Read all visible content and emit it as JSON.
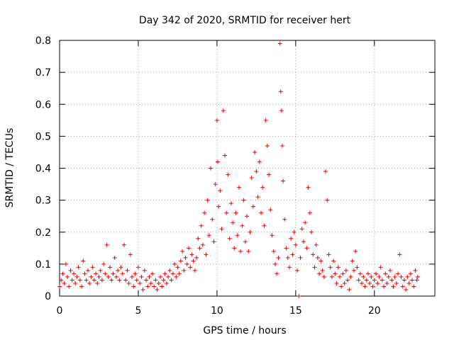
{
  "chart_data": {
    "type": "scatter",
    "title": "Day 342 of 2020, SRMTID for receiver hert",
    "xlabel": "GPS time / hours",
    "ylabel": "SRMTID / TECUs",
    "xlim": [
      0,
      23.84
    ],
    "ylim": [
      0,
      0.8
    ],
    "xticks": [
      0,
      5,
      10,
      15,
      20
    ],
    "yticks": [
      0,
      0.1,
      0.2,
      0.3,
      0.4,
      0.5,
      0.6,
      0.7,
      0.8
    ],
    "xtick_labels": [
      "0",
      "5",
      "10",
      "15",
      "20"
    ],
    "ytick_labels": [
      "0",
      "0.1",
      "0.2",
      "0.3",
      "0.4",
      "0.5",
      "0.6",
      "0.7",
      "0.8"
    ],
    "grid": true,
    "marker": "+",
    "color": "#ee0000",
    "series": [
      {
        "name": "SRMTID",
        "points": [
          [
            0.0,
            0.03
          ],
          [
            0.1,
            0.05
          ],
          [
            0.2,
            0.07
          ],
          [
            0.3,
            0.04
          ],
          [
            0.4,
            0.1
          ],
          [
            0.5,
            0.06
          ],
          [
            0.6,
            0.03
          ],
          [
            0.7,
            0.08
          ],
          [
            0.8,
            0.05
          ],
          [
            0.9,
            0.07
          ],
          [
            1.0,
            0.04
          ],
          [
            1.1,
            0.06
          ],
          [
            1.2,
            0.09
          ],
          [
            1.3,
            0.05
          ],
          [
            1.4,
            0.03
          ],
          [
            1.5,
            0.11
          ],
          [
            1.6,
            0.07
          ],
          [
            1.7,
            0.05
          ],
          [
            1.8,
            0.08
          ],
          [
            1.9,
            0.04
          ],
          [
            2.0,
            0.06
          ],
          [
            2.1,
            0.09
          ],
          [
            2.2,
            0.05
          ],
          [
            2.3,
            0.07
          ],
          [
            2.4,
            0.04
          ],
          [
            2.5,
            0.06
          ],
          [
            2.6,
            0.08
          ],
          [
            2.7,
            0.05
          ],
          [
            2.8,
            0.1
          ],
          [
            2.9,
            0.07
          ],
          [
            3.0,
            0.16
          ],
          [
            3.1,
            0.06
          ],
          [
            3.2,
            0.09
          ],
          [
            3.3,
            0.05
          ],
          [
            3.4,
            0.07
          ],
          [
            3.5,
            0.12
          ],
          [
            3.6,
            0.06
          ],
          [
            3.7,
            0.08
          ],
          [
            3.8,
            0.05
          ],
          [
            3.9,
            0.09
          ],
          [
            4.0,
            0.07
          ],
          [
            4.1,
            0.16
          ],
          [
            4.2,
            0.05
          ],
          [
            4.3,
            0.08
          ],
          [
            4.4,
            0.04
          ],
          [
            4.5,
            0.13
          ],
          [
            4.6,
            0.06
          ],
          [
            4.7,
            0.03
          ],
          [
            4.8,
            0.07
          ],
          [
            4.9,
            0.05
          ],
          [
            5.0,
            0.09
          ],
          [
            5.1,
            0.04
          ],
          [
            5.2,
            0.06
          ],
          [
            5.3,
            0.02
          ],
          [
            5.4,
            0.08
          ],
          [
            5.5,
            0.05
          ],
          [
            5.6,
            0.03
          ],
          [
            5.7,
            0.06
          ],
          [
            5.8,
            0.04
          ],
          [
            5.9,
            0.07
          ],
          [
            6.0,
            0.03
          ],
          [
            6.1,
            0.05
          ],
          [
            6.2,
            0.02
          ],
          [
            6.3,
            0.04
          ],
          [
            6.4,
            0.06
          ],
          [
            6.5,
            0.03
          ],
          [
            6.6,
            0.05
          ],
          [
            6.7,
            0.07
          ],
          [
            6.8,
            0.04
          ],
          [
            6.9,
            0.06
          ],
          [
            7.0,
            0.08
          ],
          [
            7.1,
            0.05
          ],
          [
            7.2,
            0.07
          ],
          [
            7.3,
            0.1
          ],
          [
            7.4,
            0.06
          ],
          [
            7.5,
            0.09
          ],
          [
            7.6,
            0.07
          ],
          [
            7.7,
            0.11
          ],
          [
            7.8,
            0.14
          ],
          [
            7.9,
            0.08
          ],
          [
            8.0,
            0.12
          ],
          [
            8.1,
            0.1
          ],
          [
            8.2,
            0.15
          ],
          [
            8.3,
            0.09
          ],
          [
            8.4,
            0.13
          ],
          [
            8.5,
            0.11
          ],
          [
            8.6,
            0.08
          ],
          [
            8.7,
            0.12
          ],
          [
            8.8,
            0.18
          ],
          [
            8.9,
            0.15
          ],
          [
            9.0,
            0.22
          ],
          [
            9.1,
            0.16
          ],
          [
            9.2,
            0.26
          ],
          [
            9.3,
            0.13
          ],
          [
            9.4,
            0.3
          ],
          [
            9.5,
            0.19
          ],
          [
            9.6,
            0.4
          ],
          [
            9.7,
            0.24
          ],
          [
            9.8,
            0.17
          ],
          [
            9.9,
            0.35
          ],
          [
            10.0,
            0.55
          ],
          [
            10.05,
            0.42
          ],
          [
            10.1,
            0.28
          ],
          [
            10.2,
            0.33
          ],
          [
            10.3,
            0.21
          ],
          [
            10.4,
            0.58
          ],
          [
            10.5,
            0.44
          ],
          [
            10.6,
            0.26
          ],
          [
            10.7,
            0.38
          ],
          [
            10.8,
            0.18
          ],
          [
            10.9,
            0.29
          ],
          [
            11.0,
            0.23
          ],
          [
            11.1,
            0.15
          ],
          [
            11.2,
            0.26
          ],
          [
            11.3,
            0.19
          ],
          [
            11.4,
            0.34
          ],
          [
            11.5,
            0.14
          ],
          [
            11.6,
            0.22
          ],
          [
            11.7,
            0.3
          ],
          [
            11.8,
            0.17
          ],
          [
            11.9,
            0.25
          ],
          [
            12.0,
            0.14
          ],
          [
            12.1,
            0.2
          ],
          [
            12.2,
            0.37
          ],
          [
            12.3,
            0.28
          ],
          [
            12.4,
            0.45
          ],
          [
            12.5,
            0.39
          ],
          [
            12.6,
            0.31
          ],
          [
            12.7,
            0.42
          ],
          [
            12.8,
            0.26
          ],
          [
            12.9,
            0.34
          ],
          [
            13.0,
            0.22
          ],
          [
            13.1,
            0.55
          ],
          [
            13.2,
            0.47
          ],
          [
            13.3,
            0.38
          ],
          [
            13.4,
            0.27
          ],
          [
            13.5,
            0.19
          ],
          [
            13.6,
            0.14
          ],
          [
            13.7,
            0.1
          ],
          [
            13.8,
            0.07
          ],
          [
            13.9,
            0.12
          ],
          [
            14.0,
            0.79
          ],
          [
            14.05,
            0.64
          ],
          [
            14.1,
            0.58
          ],
          [
            14.15,
            0.47
          ],
          [
            14.2,
            0.36
          ],
          [
            14.3,
            0.24
          ],
          [
            14.4,
            0.15
          ],
          [
            14.5,
            0.12
          ],
          [
            14.6,
            0.09
          ],
          [
            14.7,
            0.18
          ],
          [
            14.8,
            0.13
          ],
          [
            14.9,
            0.2
          ],
          [
            15.0,
            0.16
          ],
          [
            15.1,
            0.08
          ],
          [
            15.2,
            0.0
          ],
          [
            15.3,
            0.12
          ],
          [
            15.4,
            0.21
          ],
          [
            15.5,
            0.17
          ],
          [
            15.6,
            0.23
          ],
          [
            15.7,
            0.15
          ],
          [
            15.8,
            0.34
          ],
          [
            15.9,
            0.26
          ],
          [
            16.0,
            0.2
          ],
          [
            16.1,
            0.13
          ],
          [
            16.2,
            0.09
          ],
          [
            16.3,
            0.16
          ],
          [
            16.4,
            0.12
          ],
          [
            16.5,
            0.07
          ],
          [
            16.6,
            0.11
          ],
          [
            16.7,
            0.08
          ],
          [
            16.8,
            0.06
          ],
          [
            16.9,
            0.39
          ],
          [
            17.0,
            0.3
          ],
          [
            17.1,
            0.13
          ],
          [
            17.2,
            0.09
          ],
          [
            17.3,
            0.06
          ],
          [
            17.4,
            0.11
          ],
          [
            17.5,
            0.07
          ],
          [
            17.6,
            0.04
          ],
          [
            17.7,
            0.09
          ],
          [
            17.8,
            0.06
          ],
          [
            17.9,
            0.03
          ],
          [
            18.0,
            0.07
          ],
          [
            18.1,
            0.04
          ],
          [
            18.2,
            0.08
          ],
          [
            18.3,
            0.05
          ],
          [
            18.4,
            0.02
          ],
          [
            18.5,
            0.06
          ],
          [
            18.6,
            0.11
          ],
          [
            18.7,
            0.08
          ],
          [
            18.8,
            0.14
          ],
          [
            18.9,
            0.09
          ],
          [
            19.0,
            0.05
          ],
          [
            19.1,
            0.07
          ],
          [
            19.2,
            0.04
          ],
          [
            19.3,
            0.06
          ],
          [
            19.4,
            0.03
          ],
          [
            19.5,
            0.05
          ],
          [
            19.6,
            0.07
          ],
          [
            19.7,
            0.04
          ],
          [
            19.8,
            0.06
          ],
          [
            19.9,
            0.03
          ],
          [
            20.0,
            0.05
          ],
          [
            20.1,
            0.07
          ],
          [
            20.2,
            0.04
          ],
          [
            20.3,
            0.06
          ],
          [
            20.4,
            0.09
          ],
          [
            20.5,
            0.05
          ],
          [
            20.6,
            0.03
          ],
          [
            20.7,
            0.07
          ],
          [
            20.8,
            0.04
          ],
          [
            20.9,
            0.06
          ],
          [
            21.0,
            0.08
          ],
          [
            21.1,
            0.05
          ],
          [
            21.2,
            0.03
          ],
          [
            21.3,
            0.06
          ],
          [
            21.4,
            0.04
          ],
          [
            21.5,
            0.07
          ],
          [
            21.6,
            0.13
          ],
          [
            21.7,
            0.06
          ],
          [
            21.8,
            0.03
          ],
          [
            21.9,
            0.05
          ],
          [
            22.0,
            0.02
          ],
          [
            22.1,
            0.06
          ],
          [
            22.2,
            0.04
          ],
          [
            22.3,
            0.07
          ],
          [
            22.4,
            0.05
          ],
          [
            22.5,
            0.03
          ],
          [
            22.6,
            0.08
          ],
          [
            22.7,
            0.05
          ],
          [
            22.75,
            0.06
          ]
        ]
      }
    ]
  }
}
